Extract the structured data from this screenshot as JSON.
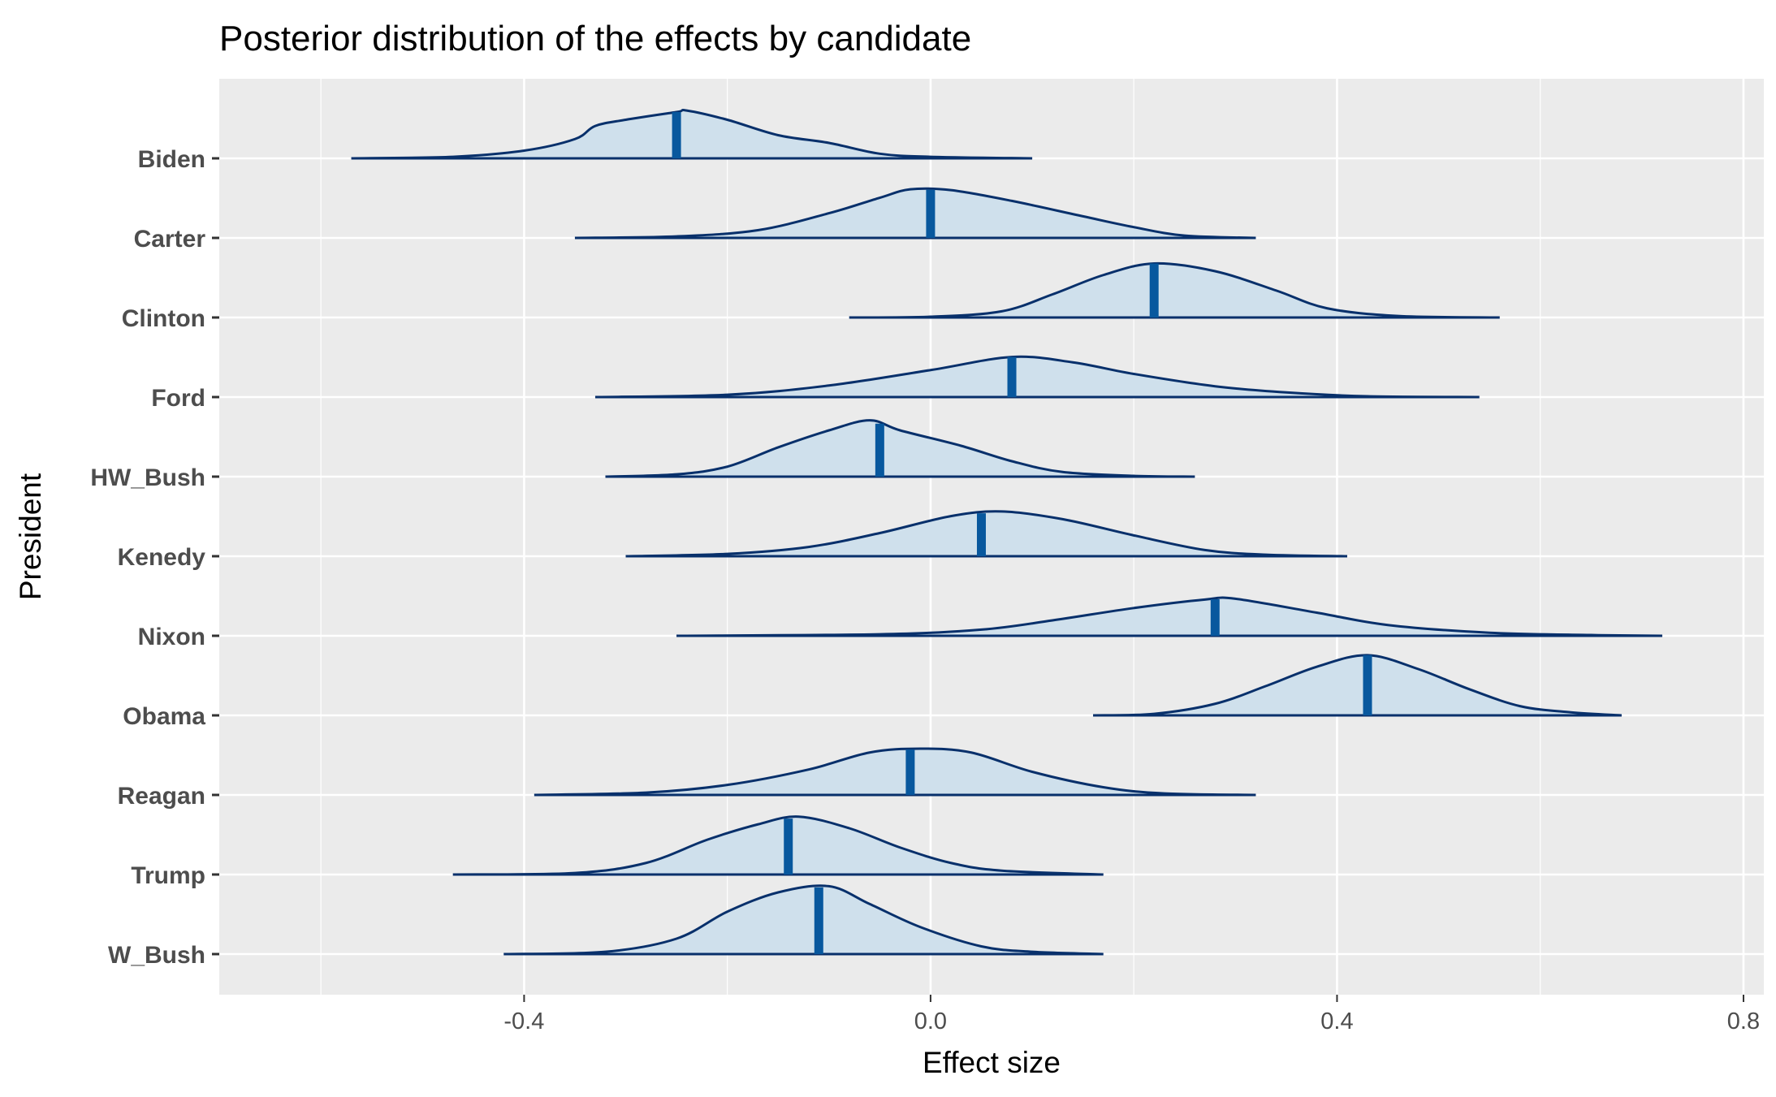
{
  "chart_data": {
    "type": "ridgeline",
    "title": "Posterior distribution of the effects by candidate",
    "xlabel": "Effect size",
    "ylabel": "President",
    "xlim": [
      -0.7,
      0.82
    ],
    "x_ticks": [
      -0.4,
      0.0,
      0.4,
      0.8
    ],
    "x_tick_labels": [
      "-0.4",
      "0.0",
      "0.4",
      "0.8"
    ],
    "grid": true,
    "legend": "none",
    "colors": {
      "fill": "#cfe0ec",
      "outline": "#08306b",
      "median": "#08589e",
      "panel": "#ebebeb",
      "grid": "#ffffff"
    },
    "series": [
      {
        "name": "Biden",
        "median": -0.25,
        "points": [
          [
            -0.57,
            0
          ],
          [
            -0.47,
            0.02
          ],
          [
            -0.4,
            0.1
          ],
          [
            -0.35,
            0.25
          ],
          [
            -0.33,
            0.42
          ],
          [
            -0.3,
            0.5
          ],
          [
            -0.25,
            0.6
          ],
          [
            -0.24,
            0.62
          ],
          [
            -0.2,
            0.5
          ],
          [
            -0.15,
            0.3
          ],
          [
            -0.1,
            0.2
          ],
          [
            -0.05,
            0.06
          ],
          [
            0,
            0.02
          ],
          [
            0.1,
            0
          ]
        ]
      },
      {
        "name": "Carter",
        "median": 0.0,
        "points": [
          [
            -0.35,
            0
          ],
          [
            -0.25,
            0.02
          ],
          [
            -0.17,
            0.1
          ],
          [
            -0.1,
            0.32
          ],
          [
            -0.05,
            0.52
          ],
          [
            -0.02,
            0.63
          ],
          [
            0.02,
            0.62
          ],
          [
            0.08,
            0.48
          ],
          [
            0.15,
            0.28
          ],
          [
            0.2,
            0.14
          ],
          [
            0.25,
            0.03
          ],
          [
            0.32,
            0
          ]
        ]
      },
      {
        "name": "Clinton",
        "median": 0.22,
        "points": [
          [
            -0.08,
            0
          ],
          [
            0,
            0.01
          ],
          [
            0.07,
            0.08
          ],
          [
            0.12,
            0.3
          ],
          [
            0.17,
            0.55
          ],
          [
            0.22,
            0.7
          ],
          [
            0.28,
            0.6
          ],
          [
            0.34,
            0.35
          ],
          [
            0.39,
            0.12
          ],
          [
            0.46,
            0.02
          ],
          [
            0.56,
            0
          ]
        ]
      },
      {
        "name": "Ford",
        "median": 0.08,
        "points": [
          [
            -0.33,
            0
          ],
          [
            -0.2,
            0.03
          ],
          [
            -0.1,
            0.15
          ],
          [
            0,
            0.35
          ],
          [
            0.08,
            0.52
          ],
          [
            0.14,
            0.45
          ],
          [
            0.2,
            0.3
          ],
          [
            0.28,
            0.14
          ],
          [
            0.35,
            0.06
          ],
          [
            0.43,
            0.01
          ],
          [
            0.54,
            0
          ]
        ]
      },
      {
        "name": "HW_Bush",
        "median": -0.05,
        "points": [
          [
            -0.32,
            0
          ],
          [
            -0.25,
            0.03
          ],
          [
            -0.2,
            0.13
          ],
          [
            -0.15,
            0.38
          ],
          [
            -0.1,
            0.6
          ],
          [
            -0.06,
            0.73
          ],
          [
            -0.03,
            0.6
          ],
          [
            0.03,
            0.4
          ],
          [
            0.08,
            0.2
          ],
          [
            0.13,
            0.06
          ],
          [
            0.2,
            0.01
          ],
          [
            0.26,
            0
          ]
        ]
      },
      {
        "name": "Kenedy",
        "median": 0.05,
        "points": [
          [
            -0.3,
            0
          ],
          [
            -0.2,
            0.03
          ],
          [
            -0.12,
            0.12
          ],
          [
            -0.05,
            0.3
          ],
          [
            0.02,
            0.52
          ],
          [
            0.07,
            0.58
          ],
          [
            0.13,
            0.48
          ],
          [
            0.2,
            0.27
          ],
          [
            0.27,
            0.08
          ],
          [
            0.33,
            0.02
          ],
          [
            0.41,
            0
          ]
        ]
      },
      {
        "name": "Nixon",
        "median": 0.28,
        "points": [
          [
            -0.25,
            0
          ],
          [
            -0.05,
            0.02
          ],
          [
            0.05,
            0.08
          ],
          [
            0.12,
            0.2
          ],
          [
            0.2,
            0.36
          ],
          [
            0.27,
            0.47
          ],
          [
            0.3,
            0.48
          ],
          [
            0.38,
            0.3
          ],
          [
            0.45,
            0.14
          ],
          [
            0.55,
            0.04
          ],
          [
            0.65,
            0.01
          ],
          [
            0.72,
            0
          ]
        ]
      },
      {
        "name": "Obama",
        "median": 0.43,
        "points": [
          [
            0.16,
            0
          ],
          [
            0.22,
            0.02
          ],
          [
            0.28,
            0.15
          ],
          [
            0.33,
            0.38
          ],
          [
            0.38,
            0.63
          ],
          [
            0.43,
            0.78
          ],
          [
            0.48,
            0.6
          ],
          [
            0.53,
            0.34
          ],
          [
            0.58,
            0.12
          ],
          [
            0.63,
            0.04
          ],
          [
            0.68,
            0
          ]
        ]
      },
      {
        "name": "Reagan",
        "median": -0.02,
        "points": [
          [
            -0.39,
            0
          ],
          [
            -0.28,
            0.03
          ],
          [
            -0.2,
            0.13
          ],
          [
            -0.12,
            0.33
          ],
          [
            -0.06,
            0.55
          ],
          [
            -0.01,
            0.6
          ],
          [
            0.04,
            0.55
          ],
          [
            0.1,
            0.3
          ],
          [
            0.17,
            0.1
          ],
          [
            0.23,
            0.02
          ],
          [
            0.32,
            0
          ]
        ]
      },
      {
        "name": "Trump",
        "median": -0.14,
        "points": [
          [
            -0.47,
            0
          ],
          [
            -0.35,
            0.02
          ],
          [
            -0.28,
            0.15
          ],
          [
            -0.22,
            0.45
          ],
          [
            -0.17,
            0.65
          ],
          [
            -0.13,
            0.75
          ],
          [
            -0.08,
            0.6
          ],
          [
            -0.03,
            0.35
          ],
          [
            0.02,
            0.15
          ],
          [
            0.07,
            0.05
          ],
          [
            0.17,
            0
          ]
        ]
      },
      {
        "name": "W_Bush",
        "median": -0.11,
        "points": [
          [
            -0.42,
            0
          ],
          [
            -0.32,
            0.03
          ],
          [
            -0.25,
            0.2
          ],
          [
            -0.2,
            0.55
          ],
          [
            -0.15,
            0.8
          ],
          [
            -0.1,
            0.88
          ],
          [
            -0.06,
            0.65
          ],
          [
            -0.01,
            0.35
          ],
          [
            0.05,
            0.1
          ],
          [
            0.1,
            0.03
          ],
          [
            0.17,
            0
          ]
        ]
      }
    ]
  }
}
